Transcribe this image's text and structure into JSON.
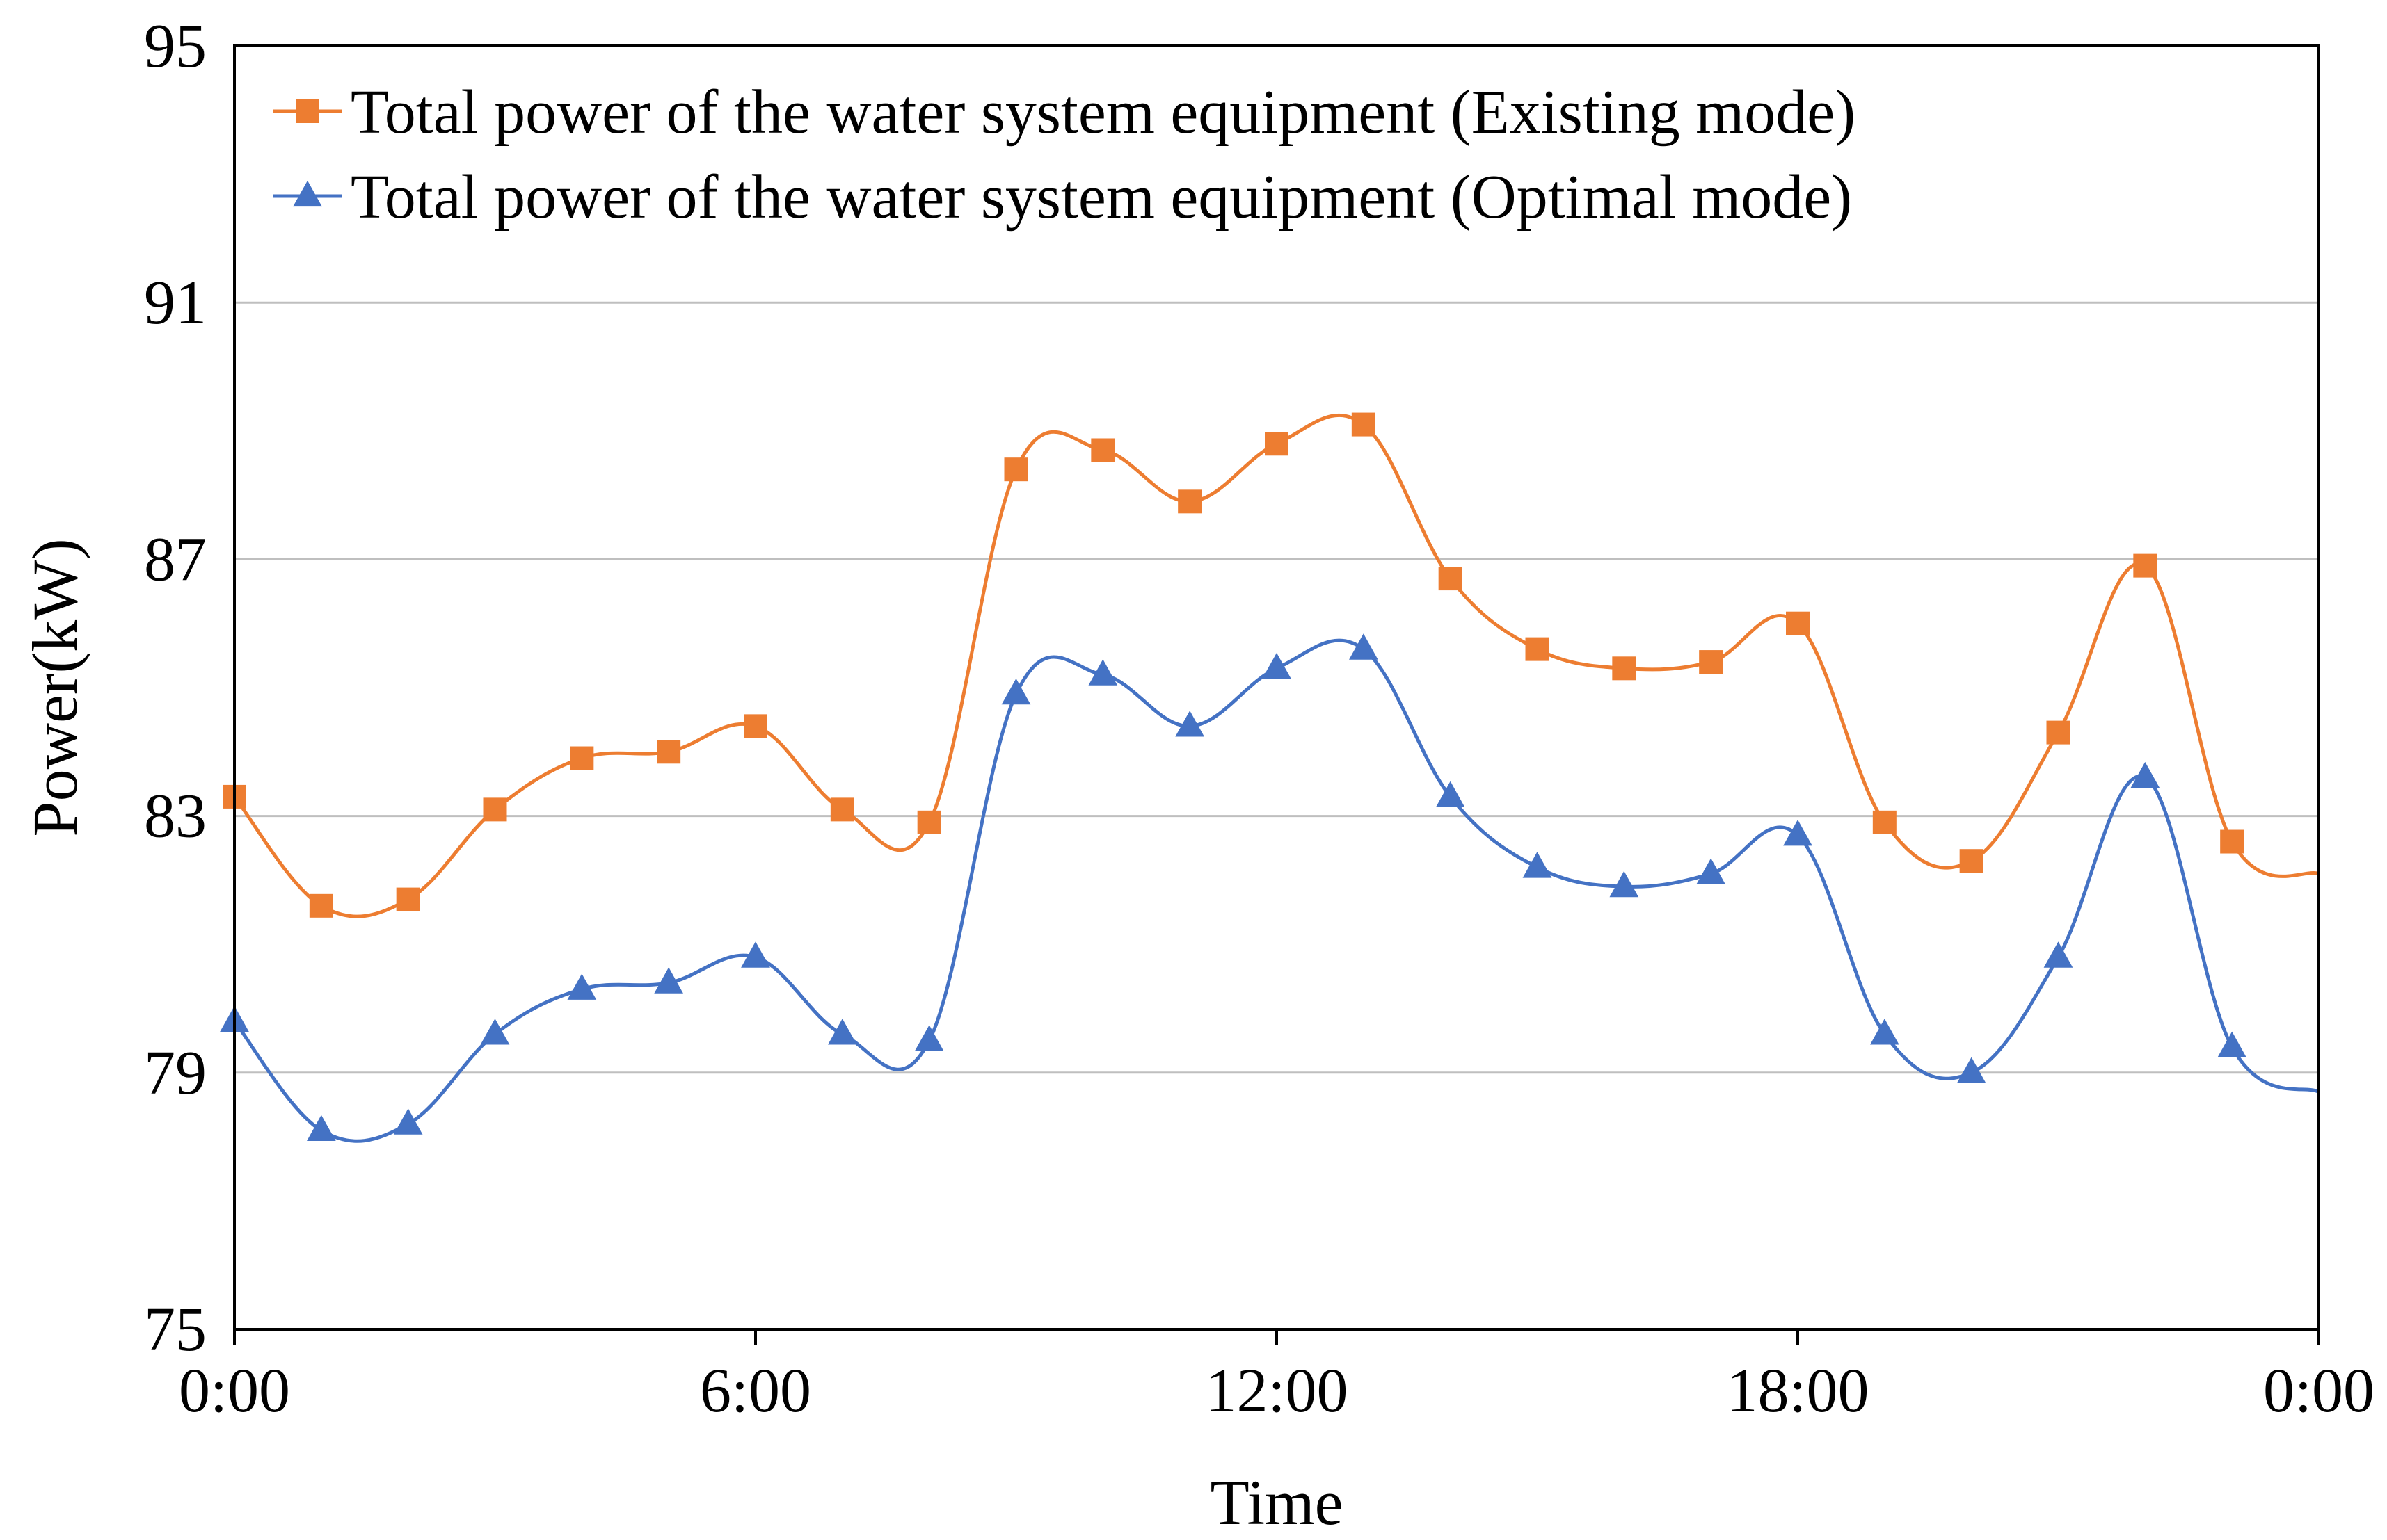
{
  "chart_data": {
    "type": "line",
    "title": "",
    "xlabel": "Time",
    "ylabel": "Power(kW)",
    "xlim": [
      0,
      24
    ],
    "ylim": [
      75,
      95
    ],
    "y_ticks": [
      75,
      79,
      83,
      87,
      91,
      95
    ],
    "y_tick_labels": [
      "75",
      "79",
      "83",
      "87",
      "91",
      "95"
    ],
    "x_ticks": [
      0,
      6,
      12,
      18,
      24
    ],
    "x_tick_labels": [
      "0:00",
      "6:00",
      "12:00",
      "18:00",
      "0:00"
    ],
    "grid": "horizontal",
    "legend_position": "top-left",
    "x": [
      0,
      1,
      2,
      3,
      4,
      5,
      6,
      7,
      8,
      9,
      10,
      11,
      12,
      13,
      14,
      15,
      16,
      17,
      18,
      19,
      20,
      21,
      22,
      23,
      24
    ],
    "series": [
      {
        "name": "Total power of the water system equipment (Existing mode)",
        "color": "#ED7D31",
        "marker": "square",
        "values": [
          83.3,
          81.6,
          81.7,
          83.1,
          83.9,
          84.0,
          84.4,
          83.1,
          82.9,
          88.4,
          88.7,
          87.9,
          88.8,
          89.1,
          86.7,
          85.6,
          85.3,
          85.4,
          86.0,
          82.9,
          82.3,
          84.3,
          86.9,
          82.6,
          82.1
        ]
      },
      {
        "name": "Total power of the water system equipment (Optimal mode)",
        "color": "#4472C4",
        "marker": "triangle",
        "values": [
          79.8,
          78.1,
          78.2,
          79.6,
          80.3,
          80.4,
          80.8,
          79.6,
          79.5,
          84.9,
          85.2,
          84.4,
          85.3,
          85.6,
          83.3,
          82.2,
          81.9,
          82.1,
          82.7,
          79.6,
          79.0,
          80.8,
          83.6,
          79.4,
          78.7
        ]
      }
    ]
  }
}
